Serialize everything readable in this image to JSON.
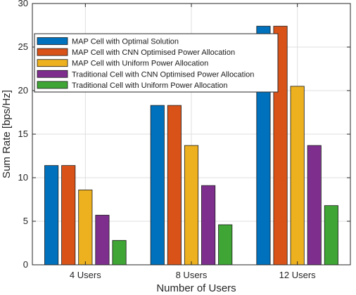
{
  "chart_data": {
    "type": "bar",
    "title": "",
    "xlabel": "Number of Users",
    "ylabel": "Sum Rate [bps/Hz]",
    "ylim": [
      0,
      30
    ],
    "yticks": [
      0,
      5,
      10,
      15,
      20,
      25,
      30
    ],
    "grid": true,
    "legend_position": "top-left",
    "categories": [
      "4 Users",
      "8 Users",
      "12 Users"
    ],
    "series": [
      {
        "name": "MAP Cell with Optimal Solution",
        "color": "#0072BD",
        "values": [
          11.4,
          18.3,
          27.4
        ]
      },
      {
        "name": "MAP Cell with CNN Optimised Power Allocation",
        "color": "#D95319",
        "values": [
          11.4,
          18.3,
          27.4
        ]
      },
      {
        "name": "MAP Cell with Uniform Power Allocation",
        "color": "#EDB120",
        "values": [
          8.6,
          13.7,
          20.5
        ]
      },
      {
        "name": "Traditional Cell with CNN Optimised Power Allocation",
        "color": "#7E2F8E",
        "values": [
          5.7,
          9.1,
          13.7
        ]
      },
      {
        "name": "Traditional Cell with Uniform Power Allocation",
        "color": "#3FA535",
        "values": [
          2.8,
          4.6,
          6.8
        ]
      }
    ]
  }
}
